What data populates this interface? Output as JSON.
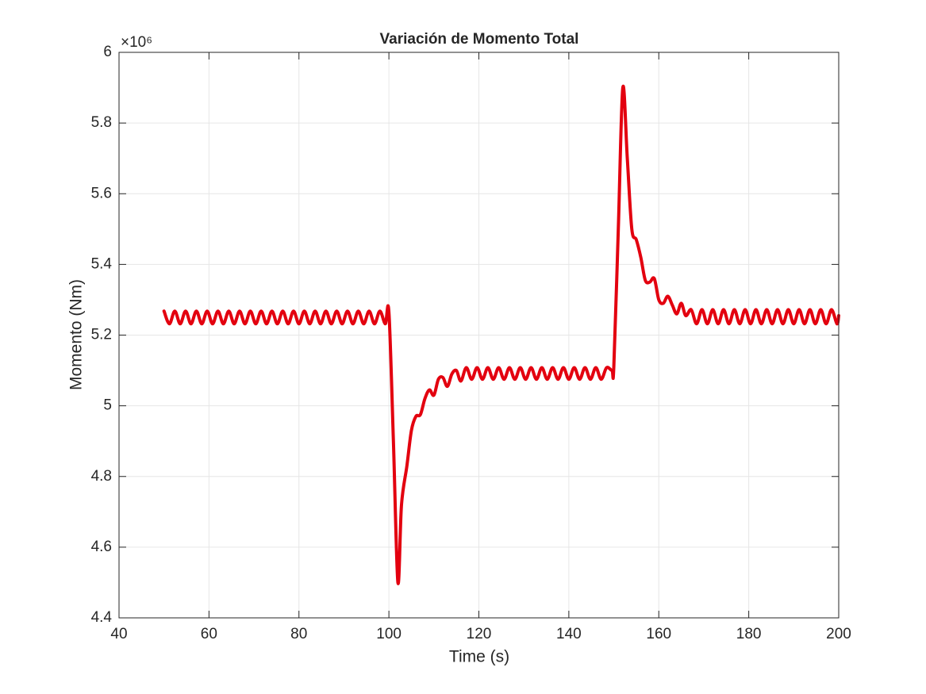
{
  "chart_data": {
    "type": "line",
    "title": "Variación de Momento Total",
    "x_label": "Time (s)",
    "y_label": "Momento (Nm)",
    "y_multiplier": "×10⁶",
    "xlim": [
      40,
      200
    ],
    "xticks": [
      40,
      60,
      80,
      100,
      120,
      140,
      160,
      180,
      200
    ],
    "ylim": [
      4.4,
      6
    ],
    "yticks": [
      4.4,
      4.6,
      4.8,
      5,
      5.2,
      5.4,
      5.6,
      5.8,
      6
    ],
    "grid": true,
    "x": [
      50,
      51.2,
      52.4,
      53.6,
      54.8,
      56,
      57.2,
      58.4,
      59.6,
      60.8,
      62,
      63.2,
      64.4,
      65.6,
      66.8,
      68,
      69.2,
      70.4,
      71.6,
      72.8,
      74,
      75.2,
      76.4,
      77.6,
      78.8,
      80,
      81.2,
      82.4,
      83.6,
      84.8,
      86,
      87.2,
      88.4,
      89.6,
      90.8,
      92,
      93.2,
      94.4,
      95.6,
      96.8,
      98,
      99.2,
      100,
      101,
      102,
      102.8,
      104,
      105,
      106,
      107,
      108,
      109,
      110,
      111,
      112,
      113,
      114,
      115,
      116,
      117.2,
      118.4,
      119.6,
      120.8,
      122,
      123.2,
      124.4,
      125.6,
      126.8,
      128,
      129.2,
      130.4,
      131.6,
      132.8,
      134,
      135.2,
      136.4,
      137.6,
      138.8,
      140,
      141.2,
      142.4,
      143.6,
      144.8,
      146,
      147.2,
      148.4,
      149.6,
      150,
      151,
      152,
      153,
      154,
      155,
      156,
      157,
      158,
      159,
      160,
      161,
      162,
      163,
      164,
      165,
      166,
      167.2,
      168.4,
      169.6,
      170.8,
      172,
      173.2,
      174.4,
      175.6,
      176.8,
      178,
      179.2,
      180.4,
      181.6,
      182.8,
      184,
      185.2,
      186.4,
      187.6,
      188.8,
      190,
      191.2,
      192.4,
      193.6,
      194.8,
      196,
      197.2,
      198.4,
      199.6,
      200
    ],
    "series": [
      {
        "name": "Momento",
        "color": "#e3000f",
        "values": [
          5.268,
          5.232,
          5.268,
          5.232,
          5.268,
          5.232,
          5.268,
          5.232,
          5.268,
          5.232,
          5.268,
          5.232,
          5.268,
          5.232,
          5.268,
          5.232,
          5.268,
          5.232,
          5.268,
          5.232,
          5.268,
          5.232,
          5.268,
          5.232,
          5.268,
          5.232,
          5.268,
          5.232,
          5.268,
          5.232,
          5.268,
          5.232,
          5.268,
          5.232,
          5.268,
          5.232,
          5.268,
          5.232,
          5.268,
          5.232,
          5.268,
          5.232,
          5.265,
          4.9,
          4.5,
          4.72,
          4.83,
          4.93,
          4.97,
          4.975,
          5.02,
          5.045,
          5.03,
          5.075,
          5.08,
          5.055,
          5.09,
          5.1,
          5.07,
          5.108,
          5.075,
          5.108,
          5.075,
          5.108,
          5.075,
          5.108,
          5.075,
          5.108,
          5.075,
          5.108,
          5.075,
          5.108,
          5.075,
          5.108,
          5.075,
          5.108,
          5.075,
          5.108,
          5.075,
          5.108,
          5.075,
          5.108,
          5.075,
          5.108,
          5.075,
          5.108,
          5.1,
          5.11,
          5.5,
          5.9,
          5.7,
          5.5,
          5.47,
          5.42,
          5.355,
          5.35,
          5.36,
          5.3,
          5.29,
          5.31,
          5.285,
          5.26,
          5.29,
          5.255,
          5.272,
          5.232,
          5.272,
          5.232,
          5.272,
          5.232,
          5.272,
          5.232,
          5.272,
          5.232,
          5.272,
          5.232,
          5.272,
          5.232,
          5.272,
          5.232,
          5.272,
          5.232,
          5.272,
          5.232,
          5.272,
          5.232,
          5.272,
          5.232,
          5.272,
          5.232,
          5.272,
          5.232,
          5.255
        ]
      }
    ]
  }
}
